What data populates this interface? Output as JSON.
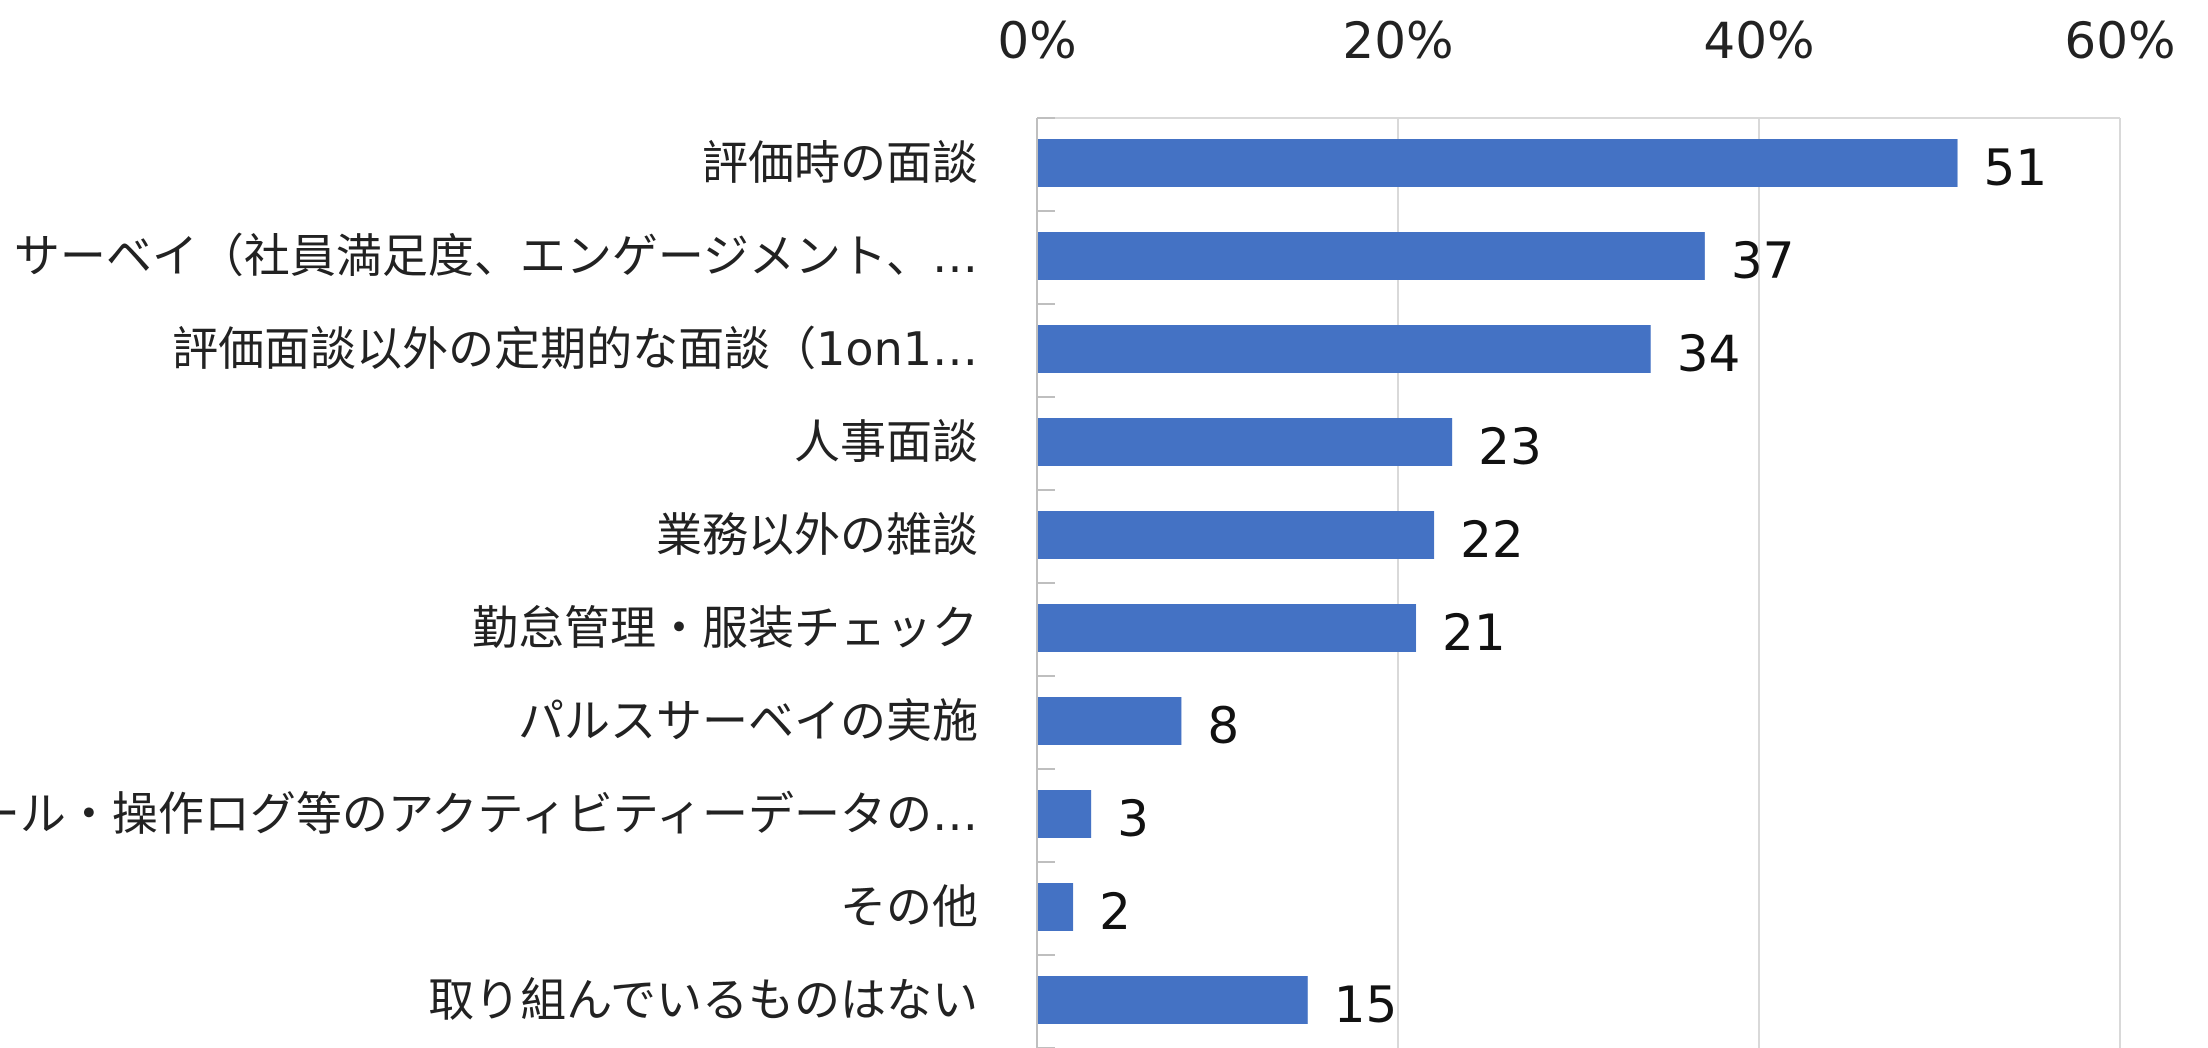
{
  "chart_data": {
    "type": "bar",
    "orientation": "horizontal",
    "title": "",
    "xlabel": "",
    "ylabel": "",
    "x_axis_position": "top",
    "xlim": [
      0,
      60
    ],
    "x_ticks": [
      0,
      20,
      40,
      60
    ],
    "x_tick_labels": [
      "0%",
      "20%",
      "40%",
      "60%"
    ],
    "grid": true,
    "legend": "none",
    "bar_color": "#4472C4",
    "categories": [
      "評価時の面談",
      "サーベイ（社員満足度、エンゲージメント、…",
      "評価面談以外の定期的な面談（1on1…",
      "人事面談",
      "業務以外の雑談",
      "勤怠管理・服装チェック",
      "パルスサーベイの実施",
      "メール・操作ログ等のアクティビティーデータの…",
      "その他",
      "取り組んでいるものはない"
    ],
    "values": [
      51,
      37,
      34,
      23,
      22,
      21,
      8,
      3,
      2,
      15
    ],
    "data_labels": [
      "51",
      "37",
      "34",
      "23",
      "22",
      "21",
      "8",
      "3",
      "2",
      "15"
    ]
  }
}
